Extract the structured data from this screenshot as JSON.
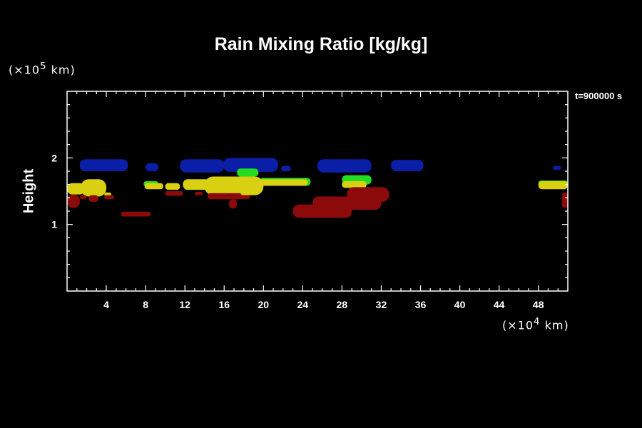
{
  "chart_data": {
    "type": "heatmap",
    "title": "Rain Mixing Ratio [kg/kg]",
    "ylabel": "Height",
    "y_unit": {
      "pre": "(×10",
      "exp": "5",
      "post": " km)"
    },
    "x_unit": {
      "pre": "(×10",
      "exp": "4",
      "post": " km)"
    },
    "time_label": "t=900000 s",
    "xlim": [
      0,
      51
    ],
    "ylim": [
      0,
      3
    ],
    "x_ticks": [
      "4",
      "8",
      "12",
      "16",
      "20",
      "24",
      "28",
      "32",
      "36",
      "40",
      "44",
      "48"
    ],
    "x_tick_values": [
      4,
      8,
      12,
      16,
      20,
      24,
      28,
      32,
      36,
      40,
      44,
      48
    ],
    "y_ticks": [
      "1",
      "2"
    ],
    "y_tick_values": [
      1,
      2
    ],
    "grid": false,
    "colors": {
      "blue": "#0a1ea8",
      "green": "#22dd22",
      "yellow": "#d8d010",
      "red": "#8c0a0a",
      "background": "#000000"
    },
    "regions": [
      {
        "color": "blue",
        "x": [
          1.3,
          6.2
        ],
        "y": [
          1.8,
          1.98
        ]
      },
      {
        "color": "blue",
        "x": [
          8.0,
          9.3
        ],
        "y": [
          1.8,
          1.92
        ]
      },
      {
        "color": "blue",
        "x": [
          11.5,
          16.0
        ],
        "y": [
          1.78,
          1.98
        ]
      },
      {
        "color": "blue",
        "x": [
          15.9,
          21.5
        ],
        "y": [
          1.79,
          2.0
        ]
      },
      {
        "color": "blue",
        "x": [
          21.8,
          22.8
        ],
        "y": [
          1.8,
          1.88
        ]
      },
      {
        "color": "blue",
        "x": [
          25.5,
          31.0
        ],
        "y": [
          1.78,
          1.98
        ]
      },
      {
        "color": "blue",
        "x": [
          33.0,
          36.3
        ],
        "y": [
          1.8,
          1.97
        ]
      },
      {
        "color": "blue",
        "x": [
          49.5,
          50.3
        ],
        "y": [
          1.82,
          1.88
        ]
      },
      {
        "color": "green",
        "x": [
          17.3,
          19.5
        ],
        "y": [
          1.72,
          1.84
        ]
      },
      {
        "color": "green",
        "x": [
          28.0,
          31.0
        ],
        "y": [
          1.6,
          1.74
        ]
      },
      {
        "color": "green",
        "x": [
          7.8,
          9.3
        ],
        "y": [
          1.57,
          1.65
        ]
      },
      {
        "color": "green",
        "x": [
          19.6,
          24.8
        ],
        "y": [
          1.58,
          1.7
        ]
      },
      {
        "color": "green",
        "x": [
          48.0,
          51.0
        ],
        "y": [
          1.58,
          1.66
        ]
      },
      {
        "color": "yellow",
        "x": [
          0.0,
          1.8
        ],
        "y": [
          1.45,
          1.62
        ]
      },
      {
        "color": "yellow",
        "x": [
          1.4,
          4.0
        ],
        "y": [
          1.42,
          1.68
        ]
      },
      {
        "color": "yellow",
        "x": [
          3.8,
          4.5
        ],
        "y": [
          1.42,
          1.48
        ]
      },
      {
        "color": "yellow",
        "x": [
          7.9,
          9.8
        ],
        "y": [
          1.53,
          1.62
        ]
      },
      {
        "color": "yellow",
        "x": [
          10.0,
          11.5
        ],
        "y": [
          1.52,
          1.62
        ]
      },
      {
        "color": "yellow",
        "x": [
          11.8,
          17.5
        ],
        "y": [
          1.52,
          1.68
        ]
      },
      {
        "color": "yellow",
        "x": [
          14.0,
          20.0
        ],
        "y": [
          1.44,
          1.72
        ]
      },
      {
        "color": "yellow",
        "x": [
          19.5,
          24.5
        ],
        "y": [
          1.58,
          1.68
        ]
      },
      {
        "color": "yellow",
        "x": [
          28.0,
          30.5
        ],
        "y": [
          1.55,
          1.65
        ]
      },
      {
        "color": "yellow",
        "x": [
          48.0,
          51.0
        ],
        "y": [
          1.53,
          1.65
        ]
      },
      {
        "color": "red",
        "x": [
          0.0,
          1.3
        ],
        "y": [
          1.25,
          1.45
        ]
      },
      {
        "color": "red",
        "x": [
          1.3,
          2.0
        ],
        "y": [
          1.38,
          1.44
        ]
      },
      {
        "color": "red",
        "x": [
          2.2,
          3.2
        ],
        "y": [
          1.34,
          1.44
        ]
      },
      {
        "color": "red",
        "x": [
          3.8,
          4.8
        ],
        "y": [
          1.38,
          1.44
        ]
      },
      {
        "color": "red",
        "x": [
          5.5,
          8.5
        ],
        "y": [
          1.12,
          1.19
        ]
      },
      {
        "color": "red",
        "x": [
          10.0,
          11.8
        ],
        "y": [
          1.43,
          1.5
        ]
      },
      {
        "color": "red",
        "x": [
          13.0,
          13.8
        ],
        "y": [
          1.44,
          1.49
        ]
      },
      {
        "color": "red",
        "x": [
          14.3,
          17.8
        ],
        "y": [
          1.38,
          1.47
        ]
      },
      {
        "color": "red",
        "x": [
          16.5,
          17.3
        ],
        "y": [
          1.24,
          1.38
        ]
      },
      {
        "color": "red",
        "x": [
          17.6,
          18.6
        ],
        "y": [
          1.38,
          1.44
        ]
      },
      {
        "color": "red",
        "x": [
          23.0,
          29.0
        ],
        "y": [
          1.1,
          1.3
        ]
      },
      {
        "color": "red",
        "x": [
          25.0,
          32.0
        ],
        "y": [
          1.22,
          1.42
        ]
      },
      {
        "color": "red",
        "x": [
          28.5,
          32.8
        ],
        "y": [
          1.34,
          1.56
        ]
      },
      {
        "color": "red",
        "x": [
          50.4,
          51.0
        ],
        "y": [
          1.25,
          1.48
        ]
      }
    ]
  }
}
